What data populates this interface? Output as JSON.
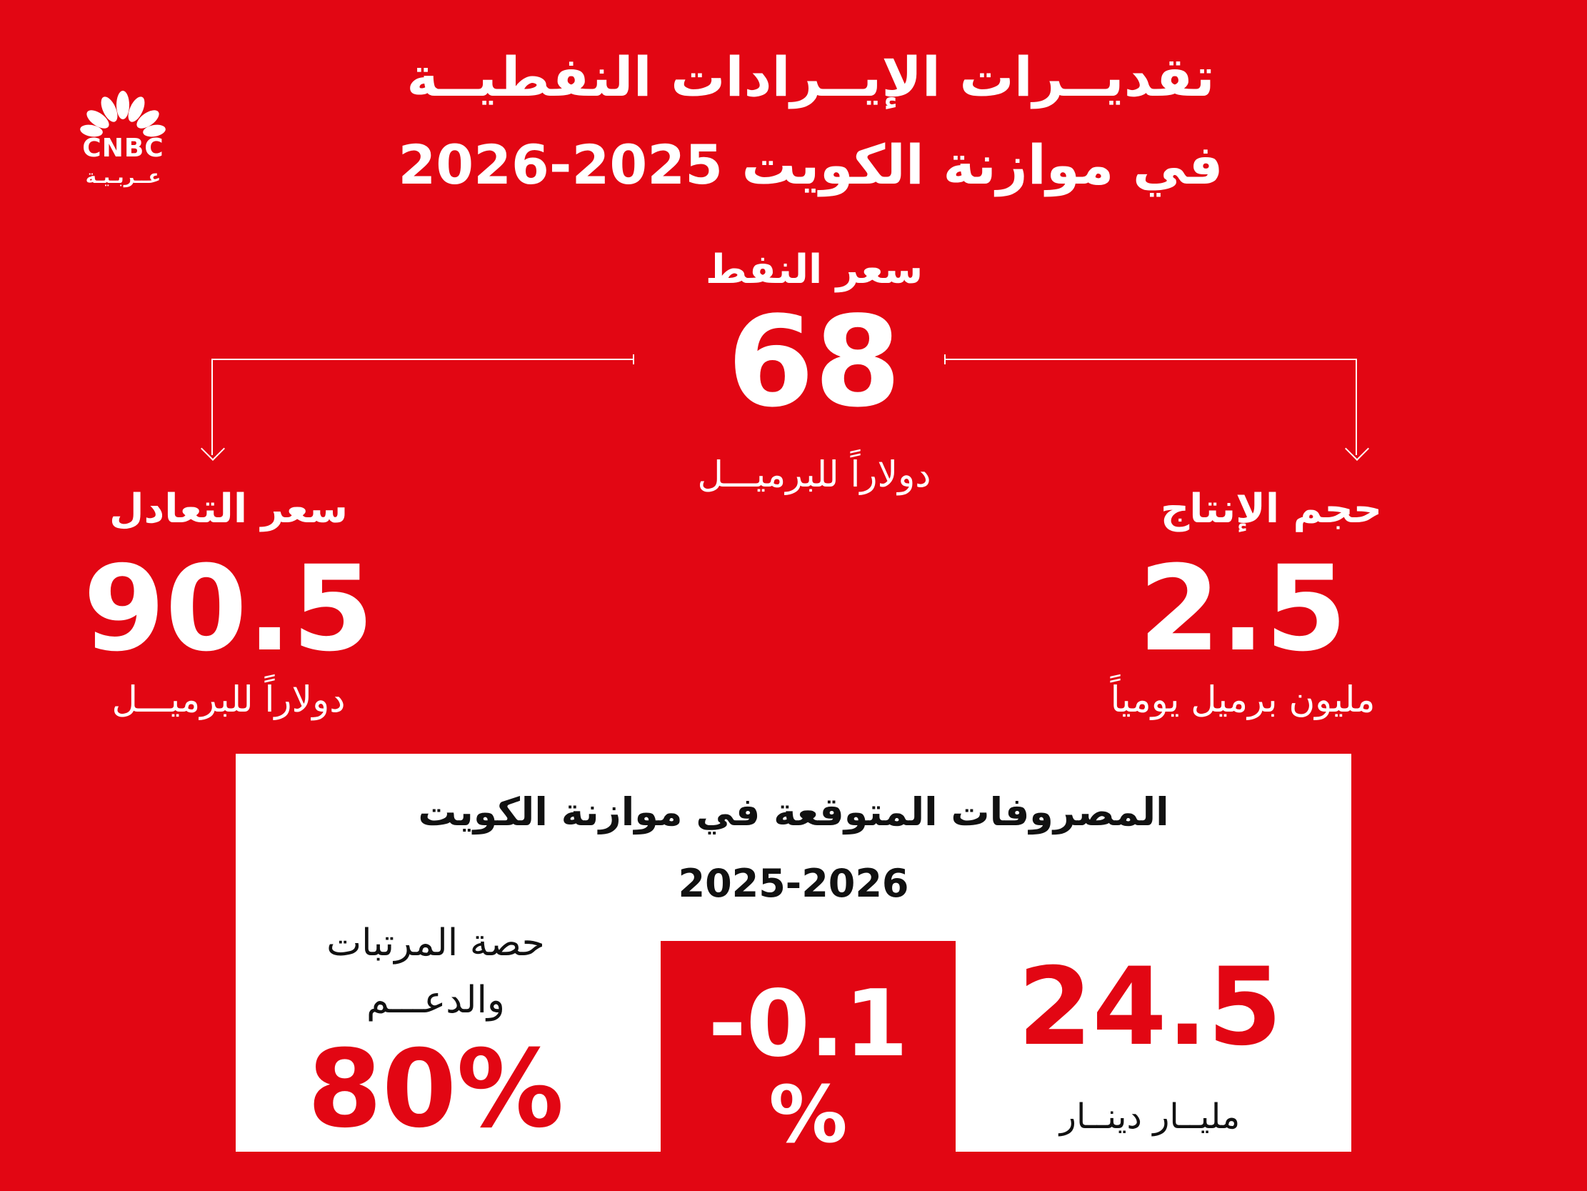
{
  "logo": {
    "brand": "CNBC",
    "sub": "عــربـيـة"
  },
  "title": {
    "line1": "تقديــرات الإيــرادات النفطيــة",
    "line2": "في موازنة الكويت 2025-2026"
  },
  "oil_price": {
    "label": "سعر النفط",
    "value": "68",
    "unit": "دولاراً للبرميـــل"
  },
  "breakeven": {
    "label": "سعر التعادل",
    "value": "90.5",
    "unit": "دولاراً للبرميـــل"
  },
  "production": {
    "label": "حجم الإنتاج",
    "value": "2.5",
    "unit": "مليون برميل يومياً"
  },
  "spending": {
    "title_line1": "المصروفات المتوقعة في موازنة الكويت",
    "title_line2": "2025-2026",
    "total_value": "24.5",
    "total_unit": "مليــار دينــار",
    "change_value": "-0.1",
    "change_pct": "%",
    "share_label_line1": "حصة المرتبات",
    "share_label_line2": "والدعـــم",
    "share_value": "80%"
  },
  "colors": {
    "background": "#e20613",
    "panel": "#ffffff",
    "accent": "#e20613"
  }
}
